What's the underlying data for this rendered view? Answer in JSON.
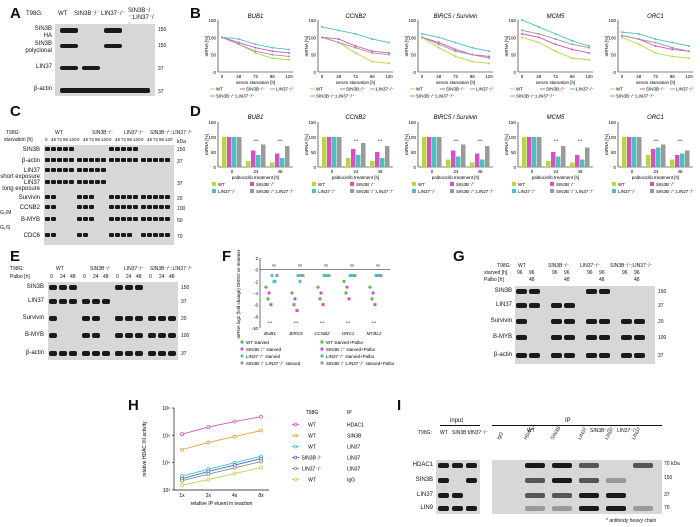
{
  "letters": {
    "A": "A",
    "B": "B",
    "C": "C",
    "D": "D",
    "E": "E",
    "F": "F",
    "G": "G",
    "H": "H",
    "I": "I"
  },
  "panelA": {
    "cell": "T98G:",
    "lanes": [
      "WT",
      "SIN3B⁻/⁻",
      "LIN37⁻/⁻",
      "SIN3B⁻/⁻;LIN37⁻/⁻"
    ],
    "rows": [
      "SIN3B",
      "SIN3B",
      "LIN37",
      "β-actin"
    ],
    "row_sub": [
      "HA",
      "polyclonal"
    ],
    "kda": [
      "150",
      "150",
      "37",
      "37"
    ]
  },
  "panelB": {
    "genes": [
      "BUB1",
      "CCNB2",
      "BIRC5 / Survivin",
      "MCM5",
      "ORC1"
    ],
    "ylabel": "mRNA [%]",
    "xlabel": "serum starvation [h]",
    "xticks": [
      "0",
      "48",
      "72",
      "96",
      "120"
    ],
    "yticks": [
      "0",
      "50",
      "100",
      "150"
    ],
    "legend": [
      "WT",
      "SIN3B⁻/⁻",
      "LIN37⁻/⁻",
      "SIN3B⁻/⁻;LIN37⁻/⁻"
    ],
    "colors": [
      "#b7d64a",
      "#d94fc0",
      "#4cc0c0",
      "#9a9a9a"
    ]
  },
  "panelC": {
    "cell": "T98G:",
    "groups": [
      "WT",
      "SIN3B⁻/⁻",
      "LIN37⁻/⁻",
      "SIN3B⁻/⁻;LIN37⁻/⁻"
    ],
    "starv_label": "starvation [h]",
    "times": [
      "0",
      "48",
      "72",
      "96",
      "120"
    ],
    "rows": [
      "SIN3B",
      "β-actin",
      "LIN37",
      "LIN37",
      "Survivin",
      "CCNB2",
      "B-MYB",
      "CDC6"
    ],
    "row_sub": [
      "",
      "",
      "short exposure",
      "long exposure",
      "",
      "",
      "",
      ""
    ],
    "phases": [
      "G₂/M",
      "G₁/S"
    ],
    "kda": [
      "kDa",
      "150",
      "37",
      "37",
      "20",
      "100",
      "50",
      "70"
    ]
  },
  "panelD": {
    "genes": [
      "BUB1",
      "CCNB2",
      "BIRC5 / Survivin",
      "MCM5",
      "ORC1"
    ],
    "ylabel": "mRNA [%]",
    "xlabel": "palbociclib treatment [h]",
    "xticks": [
      "0",
      "24",
      "48"
    ],
    "yticks": [
      "0",
      "50",
      "100",
      "150"
    ],
    "legend": [
      "WT",
      "SIN3B⁻/⁻",
      "LIN37⁻/⁻",
      "SIN3B⁻/⁻;LIN37⁻/⁻"
    ],
    "sig": "***"
  },
  "panelE": {
    "cell": "T98G:",
    "groups": [
      "WT",
      "SIN3B⁻/⁻",
      "LIN37⁻/⁻",
      "SIN3B⁻/⁻;LIN37⁻/⁻"
    ],
    "palbo_label": "Palbo [h]",
    "times": [
      "0",
      "24",
      "48"
    ],
    "rows": [
      "SIN3B",
      "LIN37",
      "Survivin",
      "B-MYB",
      "β-actin"
    ],
    "kda": [
      "150",
      "37",
      "20",
      "100",
      "37"
    ]
  },
  "panelF": {
    "ylabel": "mRNA log2 (fold change) DMSO vs treatment",
    "categories": [
      "BUB1",
      "BIRC5",
      "CCNB2",
      "ORC1",
      "MYBL2"
    ],
    "yticks": [
      "2",
      "0",
      "-2",
      "-4",
      "-6",
      "-8",
      "-10"
    ],
    "legend": [
      "WT starved",
      "SIN3B⁻/⁻ starved",
      "LIN37⁻/⁻ starved",
      "SIN3B⁻/⁻;LIN37⁻/⁻ starved",
      "WT starved+Palbo",
      "SIN3B⁻/⁻ starved+Palbo",
      "LIN37⁻/⁻ starved+Palbo",
      "SIN3B⁻/⁻;LIN37⁻/⁻ starved+Palbo"
    ],
    "sig": "***",
    "ns": "ns"
  },
  "panelG": {
    "cell": "T98G:",
    "groups": [
      "WT",
      "SIN3B⁻/⁻",
      "LIN37⁻/⁻",
      "SIN3B⁻/⁻;LIN37⁻/⁻"
    ],
    "starved_label": "starved [h]",
    "palbo_label": "Palbo [h]",
    "starved": [
      "96",
      "96"
    ],
    "palbo": [
      "48"
    ],
    "rows": [
      "SIN3B",
      "LIN37",
      "Survivin",
      "B-MYB",
      "β-actin"
    ],
    "kda": [
      "150",
      "37",
      "20",
      "100",
      "37"
    ]
  },
  "chart_data": {
    "type": "line",
    "title": "",
    "xlabel": "relative IP eluent in reaction",
    "ylabel": "relative HDAC I/II activity",
    "categories": [
      "1x",
      "2x",
      "4x",
      "8x"
    ],
    "yscale": "log",
    "ylim": [
      1000,
      1000000
    ],
    "yticks": [
      "10³",
      "10⁴",
      "10⁵",
      "10⁶"
    ],
    "legend_header": [
      "T98G",
      "IP"
    ],
    "series": [
      {
        "name": "WT HDAC1",
        "cell": "WT",
        "ip": "HDAC1",
        "color": "#d94fc0",
        "values": [
          110000,
          200000,
          320000,
          480000
        ]
      },
      {
        "name": "WT SIN3B",
        "cell": "WT",
        "ip": "SIN3B",
        "color": "#e0a23a",
        "values": [
          30000,
          55000,
          90000,
          150000
        ]
      },
      {
        "name": "WT LIN37",
        "cell": "WT",
        "ip": "LIN37",
        "color": "#4cc0c0",
        "values": [
          3200,
          5800,
          10000,
          17000
        ]
      },
      {
        "name": "SIN3B⁻/⁻ LIN37",
        "cell": "SIN3B⁻/⁻",
        "ip": "LIN37",
        "color": "#3b6fd1",
        "values": [
          2600,
          4800,
          8200,
          14000
        ]
      },
      {
        "name": "LIN37⁻/⁻ LIN37",
        "cell": "LIN37⁻/⁻",
        "ip": "LIN37",
        "color": "#8a8a8a",
        "values": [
          2200,
          3800,
          6500,
          11000
        ]
      },
      {
        "name": "WT IgG",
        "cell": "WT",
        "ip": "IgG",
        "color": "#b7d64a",
        "values": [
          1500,
          2400,
          4000,
          6600
        ]
      }
    ]
  },
  "panelI": {
    "cell": "T98G:",
    "input": "input",
    "ip": "IP",
    "input_lanes": [
      "WT",
      "SIN3B⁻/⁻",
      "LIN37⁻/⁻"
    ],
    "ip_group_wt": "WT",
    "ip_group_s": "SIN3B⁻/⁻",
    "ip_group_l": "LIN37⁻/⁻",
    "ip_lanes": [
      "IgG",
      "HDAC1",
      "SIN3B",
      "LIN37",
      "LIN37",
      "LIN37"
    ],
    "rows": [
      "HDAC1",
      "SIN3B",
      "LIN37",
      "LIN9"
    ],
    "kda": [
      "70 kDa",
      "150",
      "37",
      "70"
    ],
    "footnote": "* antibody heavy chain"
  }
}
